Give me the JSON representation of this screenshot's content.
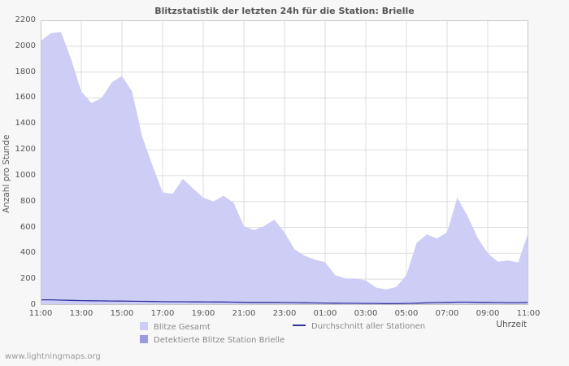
{
  "footer": "www.lightningmaps.org",
  "chart_data": {
    "type": "area",
    "title": "Blitzstatistik der letzten 24h für die Station: Brielle",
    "ylabel": "Anzahl pro Stunde",
    "xlabel": "Uhrzeit",
    "ylim": [
      0,
      2200
    ],
    "ytick_step": 200,
    "grid": true,
    "legend_position": "bottom",
    "x_tick_labels": [
      "11:00",
      "13:00",
      "15:00",
      "17:00",
      "19:00",
      "21:00",
      "23:00",
      "01:00",
      "03:00",
      "05:00",
      "07:00",
      "09:00",
      "11:00"
    ],
    "x_interval_minutes": 30,
    "colors": {
      "page_bg": "#f7f7f7",
      "plot_bg": "#ffffff",
      "grid": "#dddddd",
      "border": "#c8c8c8"
    },
    "series": [
      {
        "name": "Blitze Gesamt",
        "type": "area",
        "color": "#cdcdf6",
        "values": [
          2040,
          2100,
          2110,
          1900,
          1650,
          1560,
          1600,
          1720,
          1770,
          1650,
          1300,
          1080,
          870,
          860,
          975,
          900,
          830,
          800,
          845,
          790,
          610,
          580,
          610,
          660,
          560,
          430,
          380,
          350,
          330,
          230,
          205,
          205,
          190,
          135,
          120,
          140,
          230,
          480,
          545,
          515,
          560,
          830,
          690,
          520,
          400,
          335,
          345,
          330,
          560
        ]
      },
      {
        "name": "Detektierte Blitze Station Brielle",
        "type": "area",
        "color": "#9a9ae0",
        "values": [
          0,
          0,
          0,
          0,
          0,
          0,
          0,
          0,
          0,
          0,
          0,
          0,
          0,
          0,
          0,
          0,
          0,
          0,
          0,
          0,
          0,
          0,
          0,
          0,
          0,
          0,
          0,
          0,
          0,
          0,
          0,
          0,
          0,
          0,
          0,
          0,
          0,
          0,
          0,
          0,
          0,
          0,
          0,
          0,
          0,
          0,
          0,
          0,
          0
        ]
      },
      {
        "name": "Durchschnitt aller Stationen",
        "type": "line",
        "color": "#333399",
        "values": [
          40,
          40,
          38,
          36,
          34,
          33,
          32,
          31,
          30,
          29,
          28,
          27,
          26,
          25,
          25,
          24,
          24,
          23,
          23,
          22,
          21,
          20,
          20,
          20,
          19,
          18,
          17,
          16,
          15,
          14,
          13,
          13,
          12,
          12,
          11,
          11,
          12,
          14,
          17,
          19,
          20,
          22,
          22,
          21,
          20,
          19,
          18,
          18,
          20
        ]
      }
    ]
  }
}
